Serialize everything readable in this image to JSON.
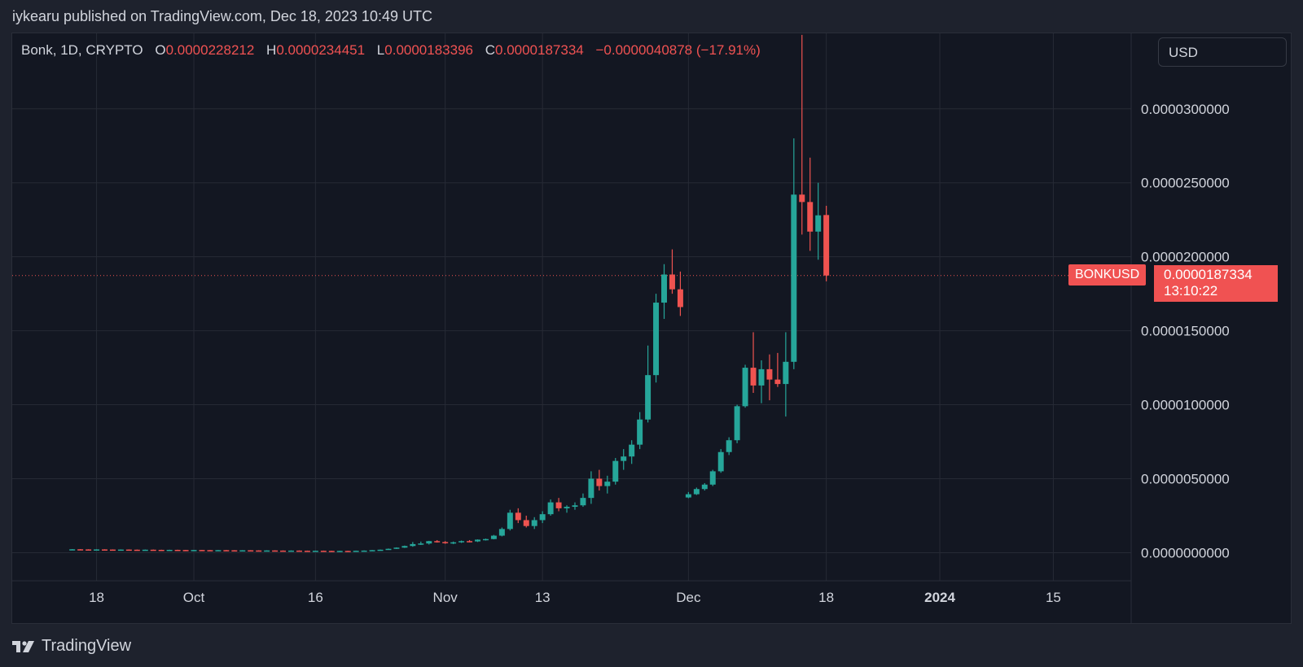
{
  "publisher_line": "iykearu published on TradingView.com, Dec 18, 2023 10:49 UTC",
  "legend": {
    "symbol": "Bonk, 1D, CRYPTO",
    "o_label": "O",
    "o_value": "0.0000228212",
    "h_label": "H",
    "h_value": "0.0000234451",
    "l_label": "L",
    "l_value": "0.0000183396",
    "c_label": "C",
    "c_value": "0.0000187334",
    "change": "−0.0000040878 (−17.91%)"
  },
  "currency": "USD",
  "symbol_tag": "BONKUSD",
  "last_price": "0.0000187334",
  "countdown": "13:10:22",
  "footer_brand": "TradingView",
  "colors": {
    "up": "#26a69a",
    "down": "#ef5350",
    "background": "#131722",
    "grid": "#262a35",
    "text": "#d1d4dc"
  },
  "chart_data": {
    "type": "candlestick",
    "price_ticks": [
      "0.0000000000",
      "0.0000050000",
      "0.0000100000",
      "0.0000150000",
      "0.0000200000",
      "0.0000250000",
      "0.0000300000"
    ],
    "time_ticks": [
      {
        "label": "18",
        "day": 0,
        "bold": false
      },
      {
        "label": "Oct",
        "day": 12,
        "bold": false
      },
      {
        "label": "16",
        "day": 27,
        "bold": false
      },
      {
        "label": "Nov",
        "day": 43,
        "bold": false
      },
      {
        "label": "13",
        "day": 55,
        "bold": false
      },
      {
        "label": "Dec",
        "day": 73,
        "bold": false
      },
      {
        "label": "18",
        "day": 90,
        "bold": false
      },
      {
        "label": "2024",
        "day": 104,
        "bold": true
      },
      {
        "label": "15",
        "day": 118,
        "bold": false
      }
    ],
    "yrange": [
      -1.9e-06,
      3.51e-05
    ],
    "day_range": [
      -10.4,
      127.6
    ],
    "candles": [
      {
        "o": 2.2e-07,
        "h": 2.4e-07,
        "l": 2.1e-07,
        "c": 2.3e-07
      },
      {
        "o": 2.3e-07,
        "h": 2.4e-07,
        "l": 2.1e-07,
        "c": 2.2e-07
      },
      {
        "o": 2.2e-07,
        "h": 2.3e-07,
        "l": 2e-07,
        "c": 2.1e-07
      },
      {
        "o": 2.1e-07,
        "h": 2.3e-07,
        "l": 2e-07,
        "c": 2.2e-07
      },
      {
        "o": 2.2e-07,
        "h": 2.3e-07,
        "l": 2e-07,
        "c": 2.1e-07
      },
      {
        "o": 2.1e-07,
        "h": 2.2e-07,
        "l": 1.9e-07,
        "c": 2e-07
      },
      {
        "o": 2e-07,
        "h": 2.2e-07,
        "l": 1.9e-07,
        "c": 2.1e-07
      },
      {
        "o": 2.1e-07,
        "h": 2.2e-07,
        "l": 1.9e-07,
        "c": 2e-07
      },
      {
        "o": 2e-07,
        "h": 2.1e-07,
        "l": 1.8e-07,
        "c": 1.9e-07
      },
      {
        "o": 1.9e-07,
        "h": 2.1e-07,
        "l": 1.8e-07,
        "c": 2e-07
      },
      {
        "o": 2e-07,
        "h": 2.1e-07,
        "l": 1.8e-07,
        "c": 1.9e-07
      },
      {
        "o": 1.9e-07,
        "h": 2e-07,
        "l": 1.7e-07,
        "c": 1.8e-07
      },
      {
        "o": 1.8e-07,
        "h": 2e-07,
        "l": 1.7e-07,
        "c": 1.9e-07
      },
      {
        "o": 1.9e-07,
        "h": 2e-07,
        "l": 1.7e-07,
        "c": 1.8e-07
      },
      {
        "o": 1.8e-07,
        "h": 1.9e-07,
        "l": 1.6e-07,
        "c": 1.7e-07
      },
      {
        "o": 1.7e-07,
        "h": 1.9e-07,
        "l": 1.6e-07,
        "c": 1.8e-07
      },
      {
        "o": 1.8e-07,
        "h": 1.9e-07,
        "l": 1.6e-07,
        "c": 1.7e-07
      },
      {
        "o": 1.7e-07,
        "h": 1.8e-07,
        "l": 1.5e-07,
        "c": 1.6e-07
      },
      {
        "o": 1.6e-07,
        "h": 1.8e-07,
        "l": 1.5e-07,
        "c": 1.7e-07
      },
      {
        "o": 1.7e-07,
        "h": 1.8e-07,
        "l": 1.5e-07,
        "c": 1.6e-07
      },
      {
        "o": 1.6e-07,
        "h": 1.7e-07,
        "l": 1.4e-07,
        "c": 1.5e-07
      },
      {
        "o": 1.5e-07,
        "h": 1.7e-07,
        "l": 1.4e-07,
        "c": 1.6e-07
      },
      {
        "o": 1.6e-07,
        "h": 1.7e-07,
        "l": 1.4e-07,
        "c": 1.5e-07
      },
      {
        "o": 1.5e-07,
        "h": 1.6e-07,
        "l": 1.3e-07,
        "c": 1.4e-07
      },
      {
        "o": 1.4e-07,
        "h": 1.6e-07,
        "l": 1.3e-07,
        "c": 1.5e-07
      },
      {
        "o": 1.5e-07,
        "h": 1.6e-07,
        "l": 1.3e-07,
        "c": 1.4e-07
      },
      {
        "o": 1.4e-07,
        "h": 1.5e-07,
        "l": 1.2e-07,
        "c": 1.3e-07
      },
      {
        "o": 1.3e-07,
        "h": 1.5e-07,
        "l": 1.2e-07,
        "c": 1.4e-07
      },
      {
        "o": 1.4e-07,
        "h": 1.5e-07,
        "l": 1.2e-07,
        "c": 1.3e-07
      },
      {
        "o": 1.3e-07,
        "h": 1.4e-07,
        "l": 1.1e-07,
        "c": 1.2e-07
      },
      {
        "o": 1.2e-07,
        "h": 1.4e-07,
        "l": 1.1e-07,
        "c": 1.3e-07
      },
      {
        "o": 1.3e-07,
        "h": 1.4e-07,
        "l": 1.1e-07,
        "c": 1.2e-07
      },
      {
        "o": 1.2e-07,
        "h": 1.3e-07,
        "l": 1e-07,
        "c": 1.1e-07
      },
      {
        "o": 1.1e-07,
        "h": 1.3e-07,
        "l": 1e-07,
        "c": 1.2e-07
      },
      {
        "o": 1.2e-07,
        "h": 1.3e-07,
        "l": 1e-07,
        "c": 1.1e-07
      },
      {
        "o": 1.1e-07,
        "h": 1.4e-07,
        "l": 1e-07,
        "c": 1.3e-07
      },
      {
        "o": 1.3e-07,
        "h": 1.5e-07,
        "l": 1.2e-07,
        "c": 1.4e-07
      },
      {
        "o": 1.4e-07,
        "h": 1.8e-07,
        "l": 1.3e-07,
        "c": 1.7e-07
      },
      {
        "o": 1.7e-07,
        "h": 2.1e-07,
        "l": 1.6e-07,
        "c": 2e-07
      },
      {
        "o": 2e-07,
        "h": 2.8e-07,
        "l": 1.9e-07,
        "c": 2.6e-07
      },
      {
        "o": 2.6e-07,
        "h": 3.6e-07,
        "l": 2.5e-07,
        "c": 3.4e-07
      },
      {
        "o": 3.4e-07,
        "h": 4.8e-07,
        "l": 3.2e-07,
        "c": 4.5e-07
      },
      {
        "o": 4.5e-07,
        "h": 7.2e-07,
        "l": 4e-07,
        "c": 5.8e-07
      },
      {
        "o": 5.8e-07,
        "h": 7.5e-07,
        "l": 5.2e-07,
        "c": 6.2e-07
      },
      {
        "o": 6.2e-07,
        "h": 8e-07,
        "l": 5.5e-07,
        "c": 7.8e-07
      },
      {
        "o": 7.8e-07,
        "h": 8.5e-07,
        "l": 6.8e-07,
        "c": 7.2e-07
      },
      {
        "o": 7.2e-07,
        "h": 7.8e-07,
        "l": 6e-07,
        "c": 6.5e-07
      },
      {
        "o": 6.5e-07,
        "h": 7.5e-07,
        "l": 5.8e-07,
        "c": 7e-07
      },
      {
        "o": 7e-07,
        "h": 8.2e-07,
        "l": 6.6e-07,
        "c": 7.8e-07
      },
      {
        "o": 7.8e-07,
        "h": 8.5e-07,
        "l": 7e-07,
        "c": 7.6e-07
      },
      {
        "o": 7.6e-07,
        "h": 9e-07,
        "l": 7.2e-07,
        "c": 8.8e-07
      },
      {
        "o": 8.8e-07,
        "h": 9.5e-07,
        "l": 8.2e-07,
        "c": 9.2e-07
      },
      {
        "o": 9.2e-07,
        "h": 1.2e-06,
        "l": 9e-07,
        "c": 1.15e-06
      },
      {
        "o": 1.15e-06,
        "h": 1.7e-06,
        "l": 1.1e-06,
        "c": 1.6e-06
      },
      {
        "o": 1.6e-06,
        "h": 2.9e-06,
        "l": 1.5e-06,
        "c": 2.7e-06
      },
      {
        "o": 2.7e-06,
        "h": 3e-06,
        "l": 2e-06,
        "c": 2.2e-06
      },
      {
        "o": 2.2e-06,
        "h": 2.5e-06,
        "l": 1.7e-06,
        "c": 1.8e-06
      },
      {
        "o": 1.8e-06,
        "h": 2.4e-06,
        "l": 1.6e-06,
        "c": 2.2e-06
      },
      {
        "o": 2.2e-06,
        "h": 2.8e-06,
        "l": 2e-06,
        "c": 2.6e-06
      },
      {
        "o": 2.6e-06,
        "h": 3.6e-06,
        "l": 2.5e-06,
        "c": 3.4e-06
      },
      {
        "o": 3.4e-06,
        "h": 3.7e-06,
        "l": 2.8e-06,
        "c": 3e-06
      },
      {
        "o": 3e-06,
        "h": 3.2e-06,
        "l": 2.7e-06,
        "c": 3.1e-06
      },
      {
        "o": 3.1e-06,
        "h": 3.4e-06,
        "l": 2.9e-06,
        "c": 3.2e-06
      },
      {
        "o": 3.2e-06,
        "h": 4e-06,
        "l": 3.1e-06,
        "c": 3.7e-06
      },
      {
        "o": 3.7e-06,
        "h": 5.5e-06,
        "l": 3.3e-06,
        "c": 5e-06
      },
      {
        "o": 5e-06,
        "h": 5.6e-06,
        "l": 4.2e-06,
        "c": 4.5e-06
      },
      {
        "o": 4.5e-06,
        "h": 5.2e-06,
        "l": 4e-06,
        "c": 4.8e-06
      },
      {
        "o": 4.8e-06,
        "h": 6.4e-06,
        "l": 4.6e-06,
        "c": 6.2e-06
      },
      {
        "o": 6.2e-06,
        "h": 7e-06,
        "l": 5.6e-06,
        "c": 6.5e-06
      },
      {
        "o": 6.5e-06,
        "h": 7.6e-06,
        "l": 6e-06,
        "c": 7.3e-06
      },
      {
        "o": 7.3e-06,
        "h": 9.5e-06,
        "l": 7e-06,
        "c": 9e-06
      },
      {
        "o": 9e-06,
        "h": 1.4e-05,
        "l": 8.8e-06,
        "c": 1.2e-05
      },
      {
        "o": 1.2e-05,
        "h": 1.75e-05,
        "l": 1.15e-05,
        "c": 1.69e-05
      },
      {
        "o": 1.69e-05,
        "h": 1.95e-05,
        "l": 1.58e-05,
        "c": 1.88e-05
      },
      {
        "o": 1.88e-05,
        "h": 2.05e-05,
        "l": 1.75e-05,
        "c": 1.78e-05
      },
      {
        "o": 1.78e-05,
        "h": 1.9e-05,
        "l": 1.6e-05,
        "c": 1.66e-05
      },
      {
        "o": 3.73e-06,
        "h": 4.1e-06,
        "l": 3.68e-06,
        "c": 3.95e-06
      },
      {
        "o": 3.95e-06,
        "h": 4.4e-06,
        "l": 3.9e-06,
        "c": 4.3e-06
      },
      {
        "o": 4.3e-06,
        "h": 4.7e-06,
        "l": 4.2e-06,
        "c": 4.6e-06
      },
      {
        "o": 4.6e-06,
        "h": 5.6e-06,
        "l": 4.5e-06,
        "c": 5.5e-06
      },
      {
        "o": 5.5e-06,
        "h": 7e-06,
        "l": 5.4e-06,
        "c": 6.8e-06
      },
      {
        "o": 6.8e-06,
        "h": 7.8e-06,
        "l": 6.6e-06,
        "c": 7.6e-06
      },
      {
        "o": 7.6e-06,
        "h": 1e-05,
        "l": 7.4e-06,
        "c": 9.9e-06
      },
      {
        "o": 9.9e-06,
        "h": 1.27e-05,
        "l": 9.8e-06,
        "c": 1.25e-05
      },
      {
        "o": 1.25e-05,
        "h": 1.49e-05,
        "l": 1.08e-05,
        "c": 1.13e-05
      },
      {
        "o": 1.13e-05,
        "h": 1.3e-05,
        "l": 1.01e-05,
        "c": 1.24e-05
      },
      {
        "o": 1.24e-05,
        "h": 1.34e-05,
        "l": 1.03e-05,
        "c": 1.17e-05
      },
      {
        "o": 1.17e-05,
        "h": 1.35e-05,
        "l": 1.12e-05,
        "c": 1.14e-05
      },
      {
        "o": 1.14e-05,
        "h": 1.49e-05,
        "l": 9.2e-06,
        "c": 1.29e-05
      },
      {
        "o": 1.29e-05,
        "h": 2.8e-05,
        "l": 1.24e-05,
        "c": 2.42e-05
      },
      {
        "o": 2.42e-05,
        "h": 3.5e-05,
        "l": 2.15e-05,
        "c": 2.37e-05
      },
      {
        "o": 2.37e-05,
        "h": 2.67e-05,
        "l": 2.04e-05,
        "c": 2.17e-05
      },
      {
        "o": 2.17e-05,
        "h": 2.5e-05,
        "l": 1.98e-05,
        "c": 2.28e-05
      },
      {
        "o": 2.28212e-05,
        "h": 2.34451e-05,
        "l": 1.83396e-05,
        "c": 1.87334e-05
      }
    ]
  }
}
